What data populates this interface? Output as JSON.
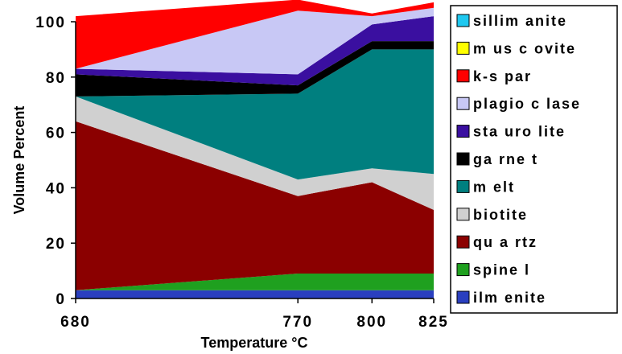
{
  "chart_data": {
    "type": "area",
    "stacked": true,
    "x": [
      680,
      770,
      800,
      825
    ],
    "xtick_labels": [
      "680",
      "770",
      "800",
      "825"
    ],
    "xlabel": "Temperature °C",
    "ylabel": "Volume Percent",
    "ylim": [
      0,
      100
    ],
    "yticks": [
      0,
      20,
      40,
      60,
      80,
      100
    ],
    "ytick_labels": [
      "0",
      "20",
      "40",
      "60",
      "80",
      "100"
    ],
    "grid": false,
    "legend_position": "right",
    "series": [
      {
        "name": "ilmenite",
        "color": "#2a3fbf",
        "values": [
          3,
          3,
          3,
          3
        ]
      },
      {
        "name": "spinel",
        "color": "#1fa01f",
        "values": [
          0,
          6,
          6,
          6
        ]
      },
      {
        "name": "quartz",
        "color": "#8b0000",
        "values": [
          61,
          28,
          33,
          23
        ]
      },
      {
        "name": "biotite",
        "color": "#d0d0d0",
        "values": [
          9,
          6,
          5,
          13
        ]
      },
      {
        "name": "melt",
        "color": "#007f7f",
        "values": [
          0,
          31,
          43,
          45
        ]
      },
      {
        "name": "garnet",
        "color": "#000000",
        "values": [
          8,
          3,
          3,
          3
        ]
      },
      {
        "name": "staurolite",
        "color": "#3a0fa0",
        "values": [
          2,
          4,
          6,
          9
        ]
      },
      {
        "name": "plagioclase",
        "color": "#c8c8f5",
        "values": [
          0,
          23,
          3,
          3
        ]
      },
      {
        "name": "k-spar",
        "color": "#ff0000",
        "values": [
          19,
          4,
          1,
          2
        ]
      },
      {
        "name": "muscovite",
        "color": "#ffff00",
        "values": [
          0,
          0,
          0,
          0
        ]
      },
      {
        "name": "sillimanite",
        "color": "#1ec8f0",
        "values": [
          0,
          0,
          0,
          0
        ]
      }
    ],
    "legend_order": [
      "sillimanite",
      "muscovite",
      "k-spar",
      "plagioclase",
      "staurolite",
      "garnet",
      "melt",
      "biotite",
      "quartz",
      "spinel",
      "ilmenite"
    ],
    "legend_labels": {
      "sillimanite": "sillim anite",
      "muscovite": "m us c ovite",
      "k-spar": "k-s par",
      "plagioclase": "plagio c lase",
      "staurolite": "sta uro lite",
      "garnet": "ga rne t",
      "melt": "m elt",
      "biotite": "biotite",
      "quartz": "qu a rtz",
      "spinel": "spine l",
      "ilmenite": "ilm enite"
    }
  }
}
